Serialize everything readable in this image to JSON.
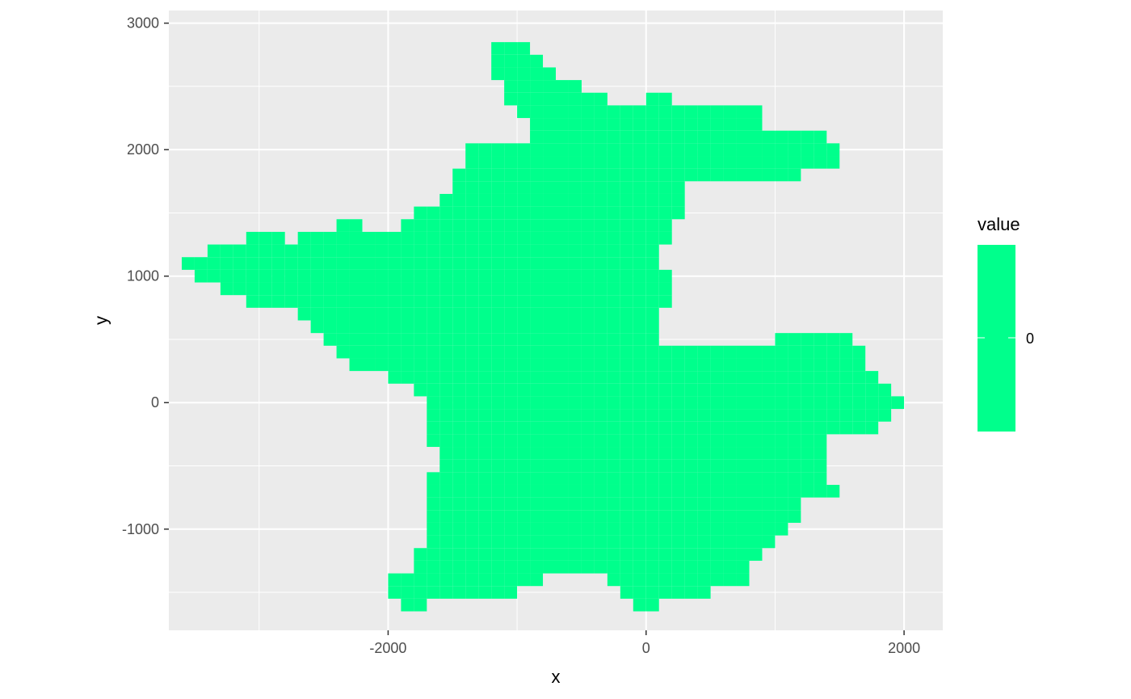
{
  "chart_data": {
    "type": "heatmap",
    "title": "",
    "xlabel": "x",
    "ylabel": "y",
    "xlim": [
      -3700,
      2300
    ],
    "ylim": [
      -1800,
      3100
    ],
    "x_ticks": [
      -2000,
      0,
      2000
    ],
    "x_tick_labels": [
      "-2000",
      "0",
      "2000"
    ],
    "y_ticks": [
      -1000,
      0,
      1000,
      2000,
      3000
    ],
    "y_tick_labels": [
      "-1000",
      "0",
      "1000",
      "2000",
      "3000"
    ],
    "grid": true,
    "legend": {
      "title": "value",
      "position": "right",
      "labels": [
        "0"
      ],
      "color": "#00FF8C"
    },
    "fill_color": "#00FF8C",
    "cell_width": 100,
    "cell_height": 100,
    "value": 0,
    "rows": [
      {
        "y": 2800,
        "spans": [
          [
            -1150,
            -950
          ]
        ]
      },
      {
        "y": 2700,
        "spans": [
          [
            -1150,
            -850
          ]
        ]
      },
      {
        "y": 2600,
        "spans": [
          [
            -1150,
            -750
          ]
        ]
      },
      {
        "y": 2500,
        "spans": [
          [
            -1050,
            -550
          ]
        ]
      },
      {
        "y": 2400,
        "spans": [
          [
            -1050,
            -350
          ],
          [
            50,
            150
          ]
        ]
      },
      {
        "y": 2300,
        "spans": [
          [
            -950,
            850
          ]
        ]
      },
      {
        "y": 2200,
        "spans": [
          [
            -850,
            850
          ]
        ]
      },
      {
        "y": 2100,
        "spans": [
          [
            -850,
            1350
          ]
        ]
      },
      {
        "y": 2000,
        "spans": [
          [
            -1350,
            1450
          ]
        ]
      },
      {
        "y": 1900,
        "spans": [
          [
            -1350,
            1450
          ]
        ]
      },
      {
        "y": 1800,
        "spans": [
          [
            -1450,
            1150
          ]
        ]
      },
      {
        "y": 1700,
        "spans": [
          [
            -1450,
            250
          ]
        ]
      },
      {
        "y": 1600,
        "spans": [
          [
            -1550,
            250
          ]
        ]
      },
      {
        "y": 1500,
        "spans": [
          [
            -1750,
            250
          ]
        ]
      },
      {
        "y": 1400,
        "spans": [
          [
            -2350,
            -2250
          ],
          [
            -1850,
            150
          ]
        ]
      },
      {
        "y": 1300,
        "spans": [
          [
            -3050,
            -2850
          ],
          [
            -2650,
            150
          ]
        ]
      },
      {
        "y": 1200,
        "spans": [
          [
            -3350,
            50
          ]
        ]
      },
      {
        "y": 1100,
        "spans": [
          [
            -3550,
            50
          ]
        ]
      },
      {
        "y": 1000,
        "spans": [
          [
            -3450,
            150
          ]
        ]
      },
      {
        "y": 900,
        "spans": [
          [
            -3250,
            150
          ]
        ]
      },
      {
        "y": 800,
        "spans": [
          [
            -3050,
            150
          ]
        ]
      },
      {
        "y": 700,
        "spans": [
          [
            -2650,
            50
          ]
        ]
      },
      {
        "y": 600,
        "spans": [
          [
            -2550,
            50
          ]
        ]
      },
      {
        "y": 500,
        "spans": [
          [
            -2450,
            50
          ],
          [
            1050,
            1550
          ]
        ]
      },
      {
        "y": 400,
        "spans": [
          [
            -2350,
            1650
          ]
        ]
      },
      {
        "y": 300,
        "spans": [
          [
            -2250,
            1650
          ]
        ]
      },
      {
        "y": 200,
        "spans": [
          [
            -1950,
            1750
          ]
        ]
      },
      {
        "y": 100,
        "spans": [
          [
            -1750,
            1850
          ]
        ]
      },
      {
        "y": 0,
        "spans": [
          [
            -1650,
            1950
          ]
        ]
      },
      {
        "y": -100,
        "spans": [
          [
            -1650,
            1850
          ]
        ]
      },
      {
        "y": -200,
        "spans": [
          [
            -1650,
            1750
          ]
        ]
      },
      {
        "y": -300,
        "spans": [
          [
            -1650,
            1350
          ]
        ]
      },
      {
        "y": -400,
        "spans": [
          [
            -1550,
            1350
          ]
        ]
      },
      {
        "y": -500,
        "spans": [
          [
            -1550,
            1350
          ]
        ]
      },
      {
        "y": -600,
        "spans": [
          [
            -1650,
            1350
          ]
        ]
      },
      {
        "y": -700,
        "spans": [
          [
            -1650,
            1450
          ]
        ]
      },
      {
        "y": -800,
        "spans": [
          [
            -1650,
            1150
          ]
        ]
      },
      {
        "y": -900,
        "spans": [
          [
            -1650,
            1150
          ]
        ]
      },
      {
        "y": -1000,
        "spans": [
          [
            -1650,
            1050
          ]
        ]
      },
      {
        "y": -1100,
        "spans": [
          [
            -1650,
            950
          ]
        ]
      },
      {
        "y": -1200,
        "spans": [
          [
            -1750,
            850
          ]
        ]
      },
      {
        "y": -1300,
        "spans": [
          [
            -1750,
            750
          ]
        ]
      },
      {
        "y": -1400,
        "spans": [
          [
            -1950,
            -850
          ],
          [
            -250,
            750
          ]
        ]
      },
      {
        "y": -1500,
        "spans": [
          [
            -1950,
            -1050
          ],
          [
            -150,
            450
          ]
        ]
      },
      {
        "y": -1600,
        "spans": [
          [
            -1850,
            -1750
          ],
          [
            -50,
            50
          ]
        ]
      }
    ]
  }
}
